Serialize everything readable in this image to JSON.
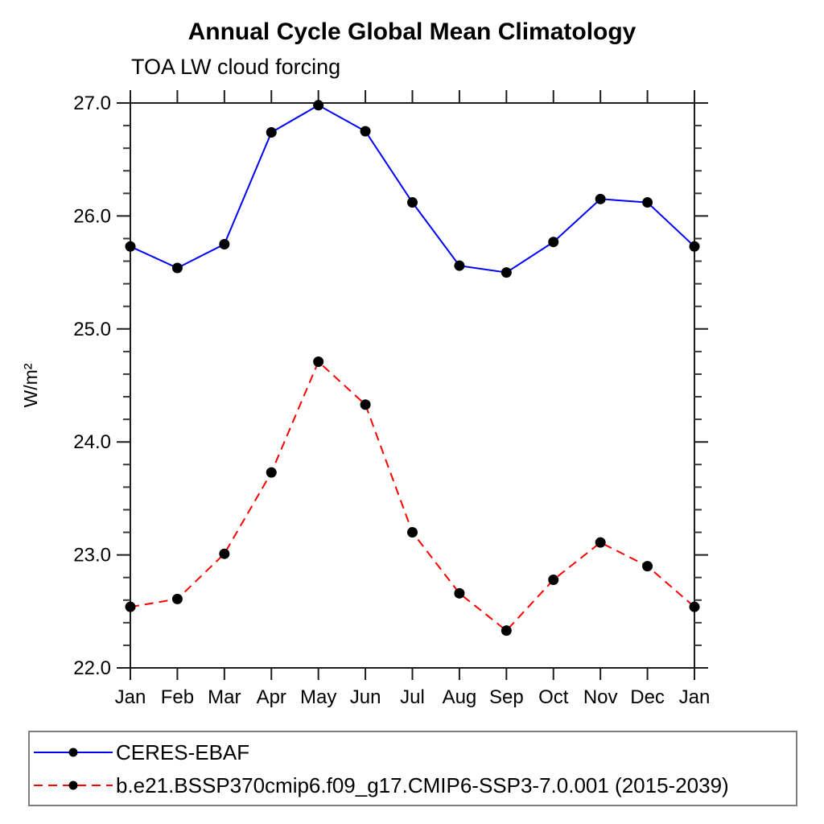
{
  "title": "Annual Cycle Global Mean Climatology",
  "subtitle": "TOA LW cloud forcing",
  "chart_data": {
    "type": "line",
    "categories": [
      "Jan",
      "Feb",
      "Mar",
      "Apr",
      "May",
      "Jun",
      "Jul",
      "Aug",
      "Sep",
      "Oct",
      "Nov",
      "Dec",
      "Jan"
    ],
    "ylabel": "W/m²",
    "ylim": [
      22.0,
      27.0
    ],
    "ytick_step": 1.0,
    "yminor_step": 0.2,
    "ytick_labels": [
      "22.0",
      "23.0",
      "24.0",
      "25.0",
      "26.0",
      "27.0"
    ],
    "grid": false,
    "legend_position": "bottom",
    "marker": "circle",
    "marker_color": "#000000",
    "series": [
      {
        "name": "CERES-EBAF",
        "color": "#0000fa",
        "line_style": "solid",
        "values": [
          25.73,
          25.54,
          25.75,
          26.74,
          26.98,
          26.75,
          26.12,
          25.56,
          25.5,
          25.77,
          26.15,
          26.12,
          25.73
        ]
      },
      {
        "name": "b.e21.BSSP370cmip6.f09_g17.CMIP6-SSP3-7.0.001 (2015-2039)",
        "color": "#fa0000",
        "line_style": "dashed",
        "values": [
          22.54,
          22.61,
          23.01,
          23.73,
          24.71,
          24.33,
          23.2,
          22.66,
          22.33,
          22.78,
          23.11,
          22.9,
          22.54
        ]
      }
    ]
  }
}
